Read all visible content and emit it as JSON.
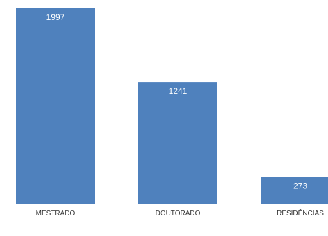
{
  "chart_data": {
    "type": "bar",
    "categories": [
      "MESTRADO",
      "DOUTORADO",
      "RESIDÊNCIAS"
    ],
    "values": [
      1997,
      1241,
      273
    ],
    "data_labels": [
      "1997",
      "1241",
      "273"
    ],
    "ylim": [
      0,
      1997
    ],
    "grid": false,
    "bar_color": "#4f81bd",
    "label_color": "#ffffff"
  }
}
